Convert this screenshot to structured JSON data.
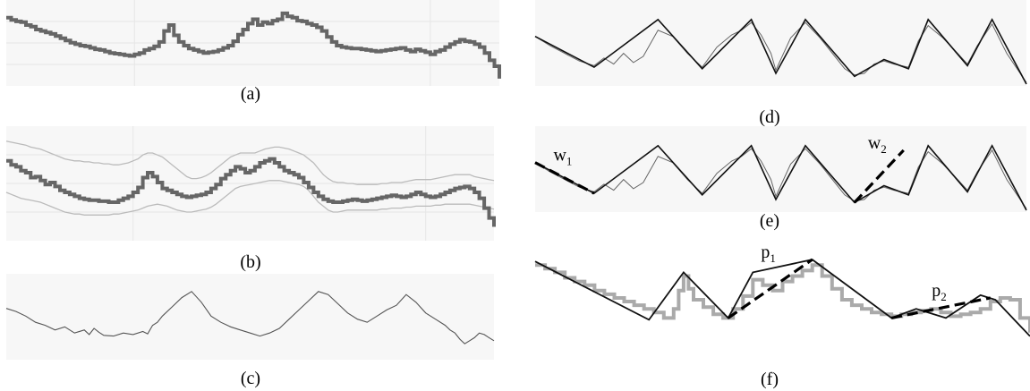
{
  "colors": {
    "panel_bg": "#f7f7f7",
    "gridline": "#e6e6e6",
    "price": "#666666",
    "band": "#bbbbbb",
    "smooth": "#555555",
    "zigzag": "#111111",
    "thin": "#666666",
    "dash": "#000000"
  },
  "chart_data": [
    {
      "id": "a",
      "caption": "(a)",
      "type": "line",
      "style": "price-bars",
      "xlim": [
        0,
        100
      ],
      "ylim": [
        0,
        100
      ],
      "x": [
        0,
        1,
        2,
        3,
        4,
        5,
        6,
        7,
        8,
        9,
        10,
        11,
        12,
        13,
        14,
        15,
        16,
        17,
        18,
        19,
        20,
        21,
        22,
        23,
        24,
        25,
        26,
        27,
        28,
        29,
        30,
        31,
        32,
        33,
        34,
        35,
        36,
        37,
        38,
        39,
        40,
        41,
        42,
        43,
        44,
        45,
        46,
        47,
        48,
        49,
        50,
        51,
        52,
        53,
        54,
        55,
        56,
        57,
        58,
        59,
        60,
        61,
        62,
        63,
        64,
        65,
        66,
        67,
        68,
        69,
        70,
        71,
        72,
        73,
        74,
        75,
        76,
        77,
        78,
        79,
        80,
        81,
        82,
        83,
        84,
        85,
        86,
        87,
        88,
        89,
        90,
        91,
        92,
        93,
        94,
        95,
        96,
        97,
        98,
        99,
        100
      ],
      "y": [
        88,
        85,
        83,
        82,
        78,
        76,
        72,
        70,
        68,
        66,
        63,
        60,
        57,
        54,
        52,
        50,
        49,
        47,
        45,
        44,
        42,
        40,
        39,
        38,
        37,
        36,
        38,
        40,
        44,
        46,
        49,
        55,
        70,
        78,
        64,
        55,
        50,
        46,
        44,
        42,
        40,
        41,
        42,
        44,
        47,
        50,
        56,
        65,
        72,
        80,
        86,
        78,
        82,
        80,
        84,
        86,
        94,
        90,
        88,
        84,
        83,
        80,
        78,
        75,
        70,
        62,
        55,
        50,
        48,
        47,
        46,
        46,
        45,
        44,
        43,
        42,
        43,
        44,
        45,
        46,
        47,
        44,
        42,
        45,
        43,
        41,
        38,
        42,
        44,
        48,
        52,
        55,
        58,
        56,
        55,
        52,
        48,
        40,
        30,
        22,
        5
      ]
    },
    {
      "id": "b",
      "caption": "(b)",
      "type": "line",
      "style": "bollinger",
      "xlim": [
        0,
        100
      ],
      "ylim": [
        0,
        100
      ],
      "x": [
        0,
        1,
        2,
        3,
        4,
        5,
        6,
        7,
        8,
        9,
        10,
        11,
        12,
        13,
        14,
        15,
        16,
        17,
        18,
        19,
        20,
        21,
        22,
        23,
        24,
        25,
        26,
        27,
        28,
        29,
        30,
        31,
        32,
        33,
        34,
        35,
        36,
        37,
        38,
        39,
        40,
        41,
        42,
        43,
        44,
        45,
        46,
        47,
        48,
        49,
        50,
        51,
        52,
        53,
        54,
        55,
        56,
        57,
        58,
        59,
        60,
        61,
        62,
        63,
        64,
        65,
        66,
        67,
        68,
        69,
        70,
        71,
        72,
        73,
        74,
        75,
        76,
        77,
        78,
        79,
        80,
        81,
        82,
        83,
        84,
        85,
        86,
        87,
        88,
        89,
        90,
        91,
        92,
        93,
        94,
        95,
        96,
        97,
        98,
        99,
        100
      ],
      "y": [
        72,
        68,
        66,
        62,
        60,
        55,
        56,
        52,
        48,
        50,
        46,
        42,
        40,
        38,
        36,
        34,
        33,
        32,
        32,
        31,
        31,
        30,
        30,
        32,
        34,
        36,
        40,
        45,
        55,
        60,
        56,
        50,
        44,
        42,
        40,
        38,
        36,
        35,
        36,
        37,
        38,
        40,
        44,
        48,
        54,
        58,
        62,
        66,
        64,
        60,
        62,
        66,
        70,
        72,
        74,
        70,
        66,
        62,
        60,
        58,
        55,
        50,
        45,
        40,
        36,
        33,
        31,
        30,
        30,
        31,
        32,
        33,
        32,
        31,
        32,
        33,
        34,
        35,
        36,
        37,
        36,
        35,
        36,
        38,
        40,
        38,
        36,
        35,
        36,
        38,
        40,
        42,
        44,
        45,
        46,
        44,
        40,
        34,
        24,
        14,
        5
      ],
      "upper": [
        92,
        91,
        90,
        89,
        88,
        86,
        85,
        84,
        82,
        80,
        78,
        76,
        74,
        73,
        72,
        72,
        71,
        71,
        70,
        70,
        69,
        69,
        68,
        68,
        69,
        70,
        72,
        74,
        78,
        80,
        80,
        78,
        76,
        72,
        68,
        64,
        60,
        56,
        54,
        54,
        55,
        57,
        60,
        64,
        68,
        72,
        76,
        78,
        80,
        80,
        80,
        80,
        82,
        84,
        85,
        86,
        86,
        85,
        84,
        82,
        80,
        78,
        74,
        70,
        64,
        58,
        54,
        51,
        50,
        50,
        49,
        49,
        48,
        48,
        48,
        48,
        48,
        49,
        49,
        50,
        50,
        50,
        51,
        52,
        53,
        53,
        53,
        53,
        54,
        55,
        56,
        57,
        58,
        58,
        58,
        58,
        56,
        55,
        54,
        53,
        52
      ],
      "lower": [
        40,
        38,
        36,
        34,
        33,
        32,
        31,
        30,
        28,
        26,
        24,
        22,
        20,
        19,
        18,
        18,
        17,
        17,
        17,
        17,
        17,
        17,
        18,
        18,
        19,
        20,
        21,
        22,
        24,
        26,
        27,
        28,
        27,
        26,
        24,
        22,
        21,
        20,
        20,
        21,
        22,
        23,
        25,
        28,
        32,
        36,
        40,
        44,
        46,
        47,
        48,
        49,
        50,
        51,
        52,
        52,
        52,
        51,
        50,
        49,
        48,
        46,
        42,
        36,
        30,
        26,
        22,
        20,
        20,
        21,
        22,
        22,
        22,
        22,
        22,
        22,
        22,
        23,
        23,
        24,
        24,
        24,
        25,
        25,
        26,
        26,
        26,
        26,
        27,
        27,
        28,
        28,
        28,
        28,
        28,
        28,
        27,
        26,
        25,
        24,
        23
      ]
    },
    {
      "id": "c",
      "caption": "(c)",
      "type": "line",
      "style": "smoothed",
      "xlim": [
        0,
        100
      ],
      "ylim": [
        0,
        100
      ],
      "x": [
        0,
        2,
        4,
        6,
        8,
        10,
        12,
        14,
        16,
        17,
        18,
        19,
        20,
        22,
        24,
        26,
        28,
        29,
        30,
        31,
        32,
        34,
        36,
        38,
        40,
        42,
        44,
        46,
        48,
        50,
        52,
        54,
        56,
        58,
        60,
        62,
        64,
        66,
        68,
        70,
        72,
        74,
        76,
        78,
        80,
        82,
        84,
        86,
        88,
        90,
        91,
        92,
        93,
        94,
        95,
        96,
        97,
        98,
        99,
        100
      ],
      "y": [
        62,
        58,
        52,
        44,
        40,
        34,
        38,
        30,
        34,
        28,
        36,
        31,
        27,
        26,
        30,
        28,
        32,
        29,
        40,
        44,
        52,
        64,
        76,
        84,
        70,
        52,
        44,
        38,
        34,
        30,
        26,
        30,
        36,
        48,
        60,
        72,
        84,
        80,
        68,
        56,
        48,
        44,
        52,
        60,
        66,
        80,
        70,
        56,
        48,
        40,
        34,
        30,
        22,
        16,
        20,
        24,
        30,
        28,
        24,
        20
      ]
    },
    {
      "id": "d",
      "caption": "(d)",
      "type": "line",
      "style": "zigzag-overlay",
      "xlim": [
        0,
        100
      ],
      "ylim": [
        0,
        100
      ],
      "x": [
        0,
        12,
        25,
        34,
        44,
        49,
        55,
        65,
        71,
        76,
        80,
        88,
        93,
        100
      ],
      "y": [
        62,
        22,
        84,
        20,
        84,
        14,
        84,
        10,
        32,
        20,
        84,
        24,
        84,
        0
      ],
      "raw_x": [
        0,
        3,
        6,
        9,
        12,
        14,
        16,
        18,
        20,
        22,
        25,
        28,
        31,
        34,
        37,
        40,
        42,
        44,
        46,
        48,
        49,
        52,
        55,
        58,
        61,
        63,
        65,
        67,
        69,
        71,
        73,
        76,
        78,
        80,
        83,
        86,
        88,
        90,
        93,
        96,
        100
      ],
      "raw_y": [
        62,
        50,
        40,
        30,
        24,
        34,
        26,
        40,
        28,
        36,
        70,
        62,
        40,
        22,
        48,
        64,
        70,
        80,
        64,
        40,
        18,
        60,
        80,
        60,
        36,
        20,
        12,
        14,
        26,
        30,
        26,
        22,
        56,
        76,
        60,
        40,
        26,
        50,
        78,
        40,
        2
      ]
    },
    {
      "id": "e",
      "caption": "(e)",
      "type": "line",
      "style": "zigzag-windows",
      "xlim": [
        0,
        100
      ],
      "ylim": [
        0,
        100
      ],
      "x": [
        0,
        12,
        25,
        34,
        44,
        49,
        55,
        65,
        71,
        76,
        80,
        88,
        93,
        100
      ],
      "y": [
        62,
        22,
        84,
        20,
        84,
        14,
        84,
        10,
        32,
        20,
        84,
        24,
        84,
        0
      ],
      "raw_x": [
        0,
        3,
        6,
        9,
        12,
        14,
        16,
        18,
        20,
        22,
        25,
        28,
        31,
        34,
        37,
        40,
        42,
        44,
        46,
        48,
        49,
        52,
        55,
        58,
        61,
        63,
        65,
        67,
        69,
        71,
        73,
        76,
        78,
        80,
        83,
        86,
        88,
        90,
        93,
        96,
        100
      ],
      "raw_y": [
        62,
        50,
        40,
        30,
        24,
        34,
        26,
        40,
        28,
        36,
        70,
        62,
        40,
        22,
        48,
        64,
        70,
        80,
        64,
        40,
        18,
        60,
        80,
        60,
        36,
        20,
        12,
        14,
        26,
        30,
        26,
        22,
        56,
        76,
        60,
        40,
        26,
        50,
        78,
        40,
        2
      ],
      "annotations": [
        {
          "label": "w",
          "subscript": "1",
          "from": [
            0,
            62
          ],
          "to": [
            12,
            22
          ]
        },
        {
          "label": "w",
          "subscript": "2",
          "from": [
            65,
            10
          ],
          "to": [
            75,
            78
          ]
        }
      ]
    },
    {
      "id": "f",
      "caption": "(f)",
      "type": "line",
      "style": "zigzag-patterns",
      "xlim": [
        0,
        100
      ],
      "ylim": [
        0,
        100
      ],
      "x": [
        0,
        23,
        30,
        39,
        44,
        56,
        72,
        77,
        83,
        90,
        93,
        100
      ],
      "y": [
        92,
        28,
        80,
        30,
        80,
        94,
        30,
        40,
        30,
        55,
        50,
        10
      ],
      "price_x": [
        0,
        2,
        4,
        6,
        8,
        10,
        12,
        14,
        16,
        18,
        20,
        22,
        24,
        26,
        28,
        29,
        30,
        31,
        32,
        34,
        36,
        38,
        40,
        42,
        44,
        46,
        48,
        50,
        52,
        54,
        56,
        58,
        60,
        62,
        64,
        66,
        68,
        70,
        72,
        74,
        76,
        78,
        80,
        82,
        84,
        86,
        88,
        90,
        92,
        94,
        96,
        98,
        100
      ],
      "price_y": [
        88,
        84,
        80,
        74,
        70,
        66,
        60,
        56,
        52,
        48,
        44,
        40,
        36,
        30,
        40,
        60,
        76,
        62,
        50,
        42,
        34,
        30,
        40,
        54,
        72,
        66,
        60,
        70,
        76,
        82,
        88,
        76,
        62,
        50,
        44,
        40,
        36,
        34,
        32,
        34,
        36,
        38,
        40,
        36,
        32,
        34,
        36,
        40,
        48,
        52,
        50,
        30,
        14
      ],
      "annotations": [
        {
          "label": "p",
          "subscript": "1",
          "from": [
            39,
            30
          ],
          "to": [
            56,
            94
          ]
        },
        {
          "label": "p",
          "subscript": "2",
          "from": [
            72,
            30
          ],
          "to": [
            92,
            52
          ]
        }
      ]
    }
  ]
}
